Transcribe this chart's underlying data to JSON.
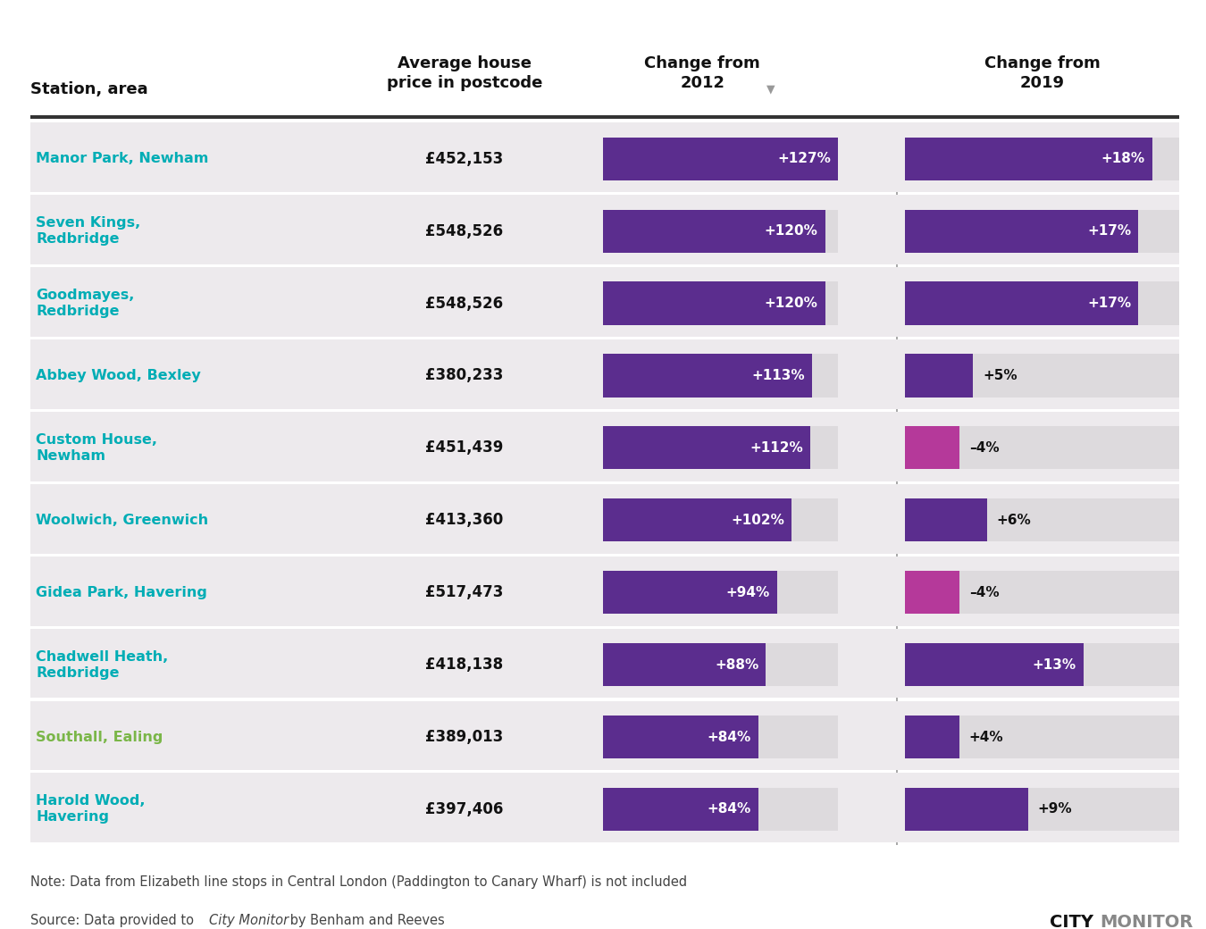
{
  "stations": [
    "Manor Park, Newham",
    "Seven Kings,\nRedbridge",
    "Goodmayes,\nRedbridge",
    "Abbey Wood, Bexley",
    "Custom House,\nNewham",
    "Woolwich, Greenwich",
    "Gidea Park, Havering",
    "Chadwell Heath,\nRedbridge",
    "Southall, Ealing",
    "Harold Wood,\nHavering"
  ],
  "station_colors": [
    "#00ADB5",
    "#00ADB5",
    "#00ADB5",
    "#00ADB5",
    "#00ADB5",
    "#00ADB5",
    "#00ADB5",
    "#00ADB5",
    "#7AB648",
    "#00ADB5"
  ],
  "prices": [
    "£452,153",
    "£548,526",
    "£548,526",
    "£380,233",
    "£451,439",
    "£413,360",
    "£517,473",
    "£418,138",
    "£389,013",
    "£397,406"
  ],
  "change_2012": [
    127,
    120,
    120,
    113,
    112,
    102,
    94,
    88,
    84,
    84
  ],
  "change_2019": [
    18,
    17,
    17,
    5,
    -4,
    6,
    -4,
    13,
    4,
    9
  ],
  "purple_bar": "#5B2D8E",
  "magenta_bar": "#B5399A",
  "bar_bg_color": "#DDDADD",
  "row_bg_color": "#EDEAED",
  "separator_color": "#FFFFFF",
  "header_line_color": "#333333",
  "divider_color": "#AAAAAA",
  "text_color": "#111111",
  "note_text": "Note: Data from Elizabeth line stops in Central London (Paddington to Canary Wharf) is not included",
  "source_prefix": "Source: Data provided to ",
  "source_italic": "City Monitor",
  "source_suffix": " by Benham and Reeves",
  "col_label": "Station, area",
  "header_price": "Average house\nprice in postcode",
  "header_2012": "Change from\n2012",
  "header_2019": "Change from\n2019",
  "city_text": "CITY",
  "monitor_text": "MONITOR",
  "fig_width": 13.5,
  "fig_height": 10.4,
  "dpi": 100,
  "max_2012": 127,
  "max_2019_scale": 20
}
